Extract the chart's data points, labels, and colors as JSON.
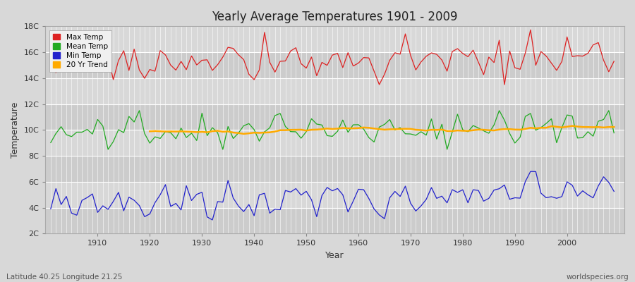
{
  "title": "Yearly Average Temperatures 1901 - 2009",
  "xlabel": "Year",
  "ylabel": "Temperature",
  "lat_lon_label": "Latitude 40.25 Longitude 21.25",
  "source_label": "worldspecies.org",
  "year_start": 1901,
  "year_end": 2009,
  "background_color": "#d8d8d8",
  "plot_bg_color": "#d8d8d8",
  "grid_color": "#ffffff",
  "ylim": [
    2,
    18
  ],
  "yticks": [
    2,
    4,
    6,
    8,
    10,
    12,
    14,
    16,
    18
  ],
  "ytick_labels": [
    "2C",
    "4C",
    "6C",
    "8C",
    "10C",
    "12C",
    "14C",
    "16C",
    "18C"
  ],
  "max_temp_color": "#dd2222",
  "mean_temp_color": "#22aa22",
  "min_temp_color": "#2222cc",
  "trend_color": "#ffaa00",
  "legend_labels": [
    "Max Temp",
    "Mean Temp",
    "Min Temp",
    "20 Yr Trend"
  ],
  "max_temp_base": 15.2,
  "mean_temp_base": 9.8,
  "min_temp_base": 4.1,
  "max_temp_trend": 0.002,
  "mean_temp_trend": 0.004,
  "min_temp_trend": 0.013
}
